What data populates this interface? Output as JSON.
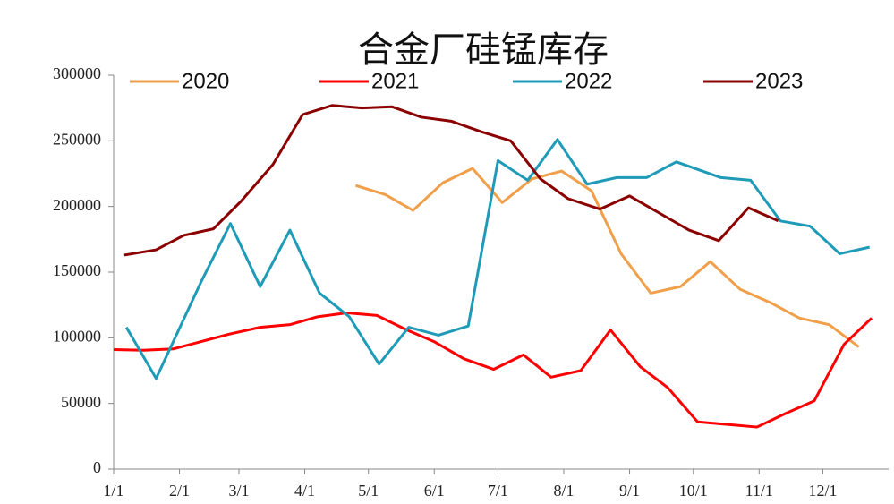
{
  "chart_data": {
    "type": "line",
    "title": "合金厂硅锰库存",
    "xlim": [
      0,
      365
    ],
    "xticks": [
      {
        "value": 0,
        "label": "1/1"
      },
      {
        "value": 31,
        "label": "2/1"
      },
      {
        "value": 59,
        "label": "3/1"
      },
      {
        "value": 90,
        "label": "4/1"
      },
      {
        "value": 120,
        "label": "5/1"
      },
      {
        "value": 151,
        "label": "6/1"
      },
      {
        "value": 181,
        "label": "7/1"
      },
      {
        "value": 212,
        "label": "8/1"
      },
      {
        "value": 243,
        "label": "9/1"
      },
      {
        "value": 273,
        "label": "10/1"
      },
      {
        "value": 304,
        "label": "11/1"
      },
      {
        "value": 334,
        "label": "12/1"
      }
    ],
    "ylim": [
      0,
      300000
    ],
    "yticks": [
      0,
      50000,
      100000,
      150000,
      200000,
      250000,
      300000
    ],
    "series": [
      {
        "name": "2020",
        "color": "#f0a04b",
        "x": [
          114,
          128,
          141,
          155,
          169,
          183,
          197,
          211,
          225,
          239,
          253,
          267,
          281,
          295,
          309,
          323,
          337,
          351
        ],
        "values": [
          216000,
          209000,
          197000,
          218000,
          229000,
          203000,
          221000,
          227000,
          212000,
          164000,
          134000,
          139000,
          158000,
          137000,
          127000,
          115000,
          110000,
          93000
        ]
      },
      {
        "name": "2021",
        "color": "#ff0000",
        "x": [
          0,
          14,
          28,
          41,
          55,
          69,
          83,
          96,
          110,
          124,
          138,
          151,
          165,
          179,
          193,
          206,
          220,
          234,
          248,
          261,
          275,
          289,
          303,
          316,
          330,
          344,
          357
        ],
        "values": [
          91000,
          90500,
          91500,
          97000,
          103000,
          108000,
          110000,
          116000,
          119000,
          117000,
          106000,
          97000,
          84000,
          76000,
          87000,
          70000,
          75000,
          106000,
          78000,
          62000,
          36000,
          34000,
          32000,
          42000,
          52000,
          95000,
          115000
        ]
      },
      {
        "name": "2022",
        "color": "#1f9bb8",
        "x": [
          6,
          20,
          41,
          55,
          69,
          83,
          97,
          111,
          125,
          139,
          153,
          167,
          181,
          195,
          209,
          223,
          237,
          251,
          265,
          286,
          300,
          314,
          328,
          342,
          356
        ],
        "values": [
          108000,
          69000,
          142000,
          187000,
          139000,
          182000,
          134000,
          116000,
          80000,
          108000,
          102000,
          109000,
          235000,
          220000,
          251000,
          217000,
          222000,
          222000,
          234000,
          222000,
          220000,
          189000,
          185000,
          164000,
          169000
        ]
      },
      {
        "name": "2023",
        "color": "#8b0000",
        "x": [
          5,
          20,
          33,
          47,
          60,
          75,
          89,
          103,
          117,
          131,
          145,
          159,
          173,
          187,
          201,
          214,
          229,
          243,
          257,
          271,
          285,
          299,
          313
        ],
        "values": [
          163000,
          167000,
          178000,
          183000,
          204000,
          232000,
          270000,
          277000,
          275000,
          276000,
          268000,
          265000,
          257000,
          250000,
          221000,
          206000,
          198000,
          208000,
          195000,
          182000,
          174000,
          199000,
          189000
        ]
      }
    ]
  }
}
